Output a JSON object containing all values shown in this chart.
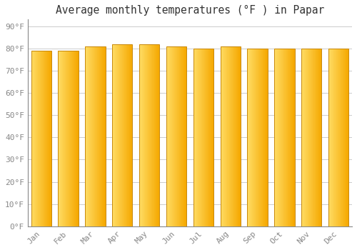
{
  "title": "Average monthly temperatures (°F ) in Papar",
  "months": [
    "Jan",
    "Feb",
    "Mar",
    "Apr",
    "May",
    "Jun",
    "Jul",
    "Aug",
    "Sep",
    "Oct",
    "Nov",
    "Dec"
  ],
  "values": [
    79,
    79,
    81,
    82,
    82,
    81,
    80,
    81,
    80,
    80,
    80,
    80
  ],
  "bar_color_left": "#FFD966",
  "bar_color_right": "#F5A800",
  "bar_edge_color": "#C8880A",
  "yticks": [
    0,
    10,
    20,
    30,
    40,
    50,
    60,
    70,
    80,
    90
  ],
  "ylim": [
    0,
    93
  ],
  "background_color": "#FFFFFF",
  "grid_color": "#CCCCCC",
  "title_fontsize": 10.5,
  "tick_fontsize": 8,
  "tick_color": "#888888",
  "font_family": "monospace"
}
